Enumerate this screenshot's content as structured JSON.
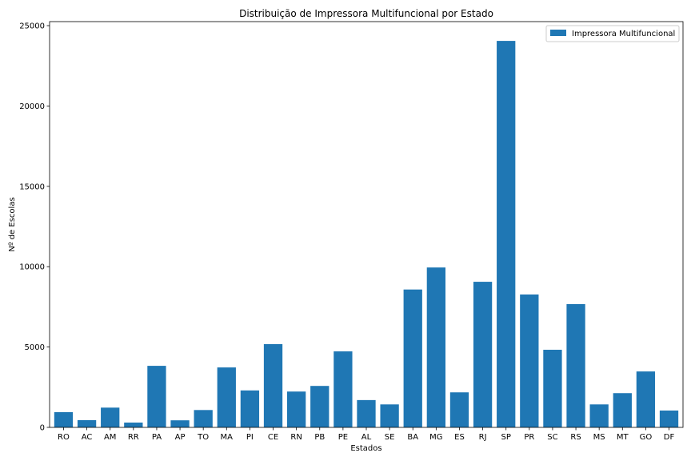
{
  "chart_data": {
    "type": "bar",
    "title": "Distribuição de Impressora Multifuncional por Estado",
    "xlabel": "Estados",
    "ylabel": "Nº de Escolas",
    "categories": [
      "RO",
      "AC",
      "AM",
      "RR",
      "PA",
      "AP",
      "TO",
      "MA",
      "PI",
      "CE",
      "RN",
      "PB",
      "PE",
      "AL",
      "SE",
      "BA",
      "MG",
      "ES",
      "RJ",
      "SP",
      "PR",
      "SC",
      "RS",
      "MS",
      "MT",
      "GO",
      "DF"
    ],
    "series": [
      {
        "name": "Impressora Multifuncional",
        "color": "#1f77b4",
        "values": [
          950,
          450,
          1230,
          300,
          3830,
          440,
          1080,
          3730,
          2300,
          5180,
          2230,
          2580,
          4730,
          1700,
          1430,
          8580,
          9950,
          2180,
          9060,
          24050,
          8270,
          4830,
          7670,
          1430,
          2130,
          3480,
          1050
        ]
      }
    ],
    "ylim": [
      0,
      25250
    ],
    "yticks": [
      0,
      5000,
      10000,
      15000,
      20000,
      25000
    ],
    "grid": false,
    "legend_position": "top-right"
  }
}
